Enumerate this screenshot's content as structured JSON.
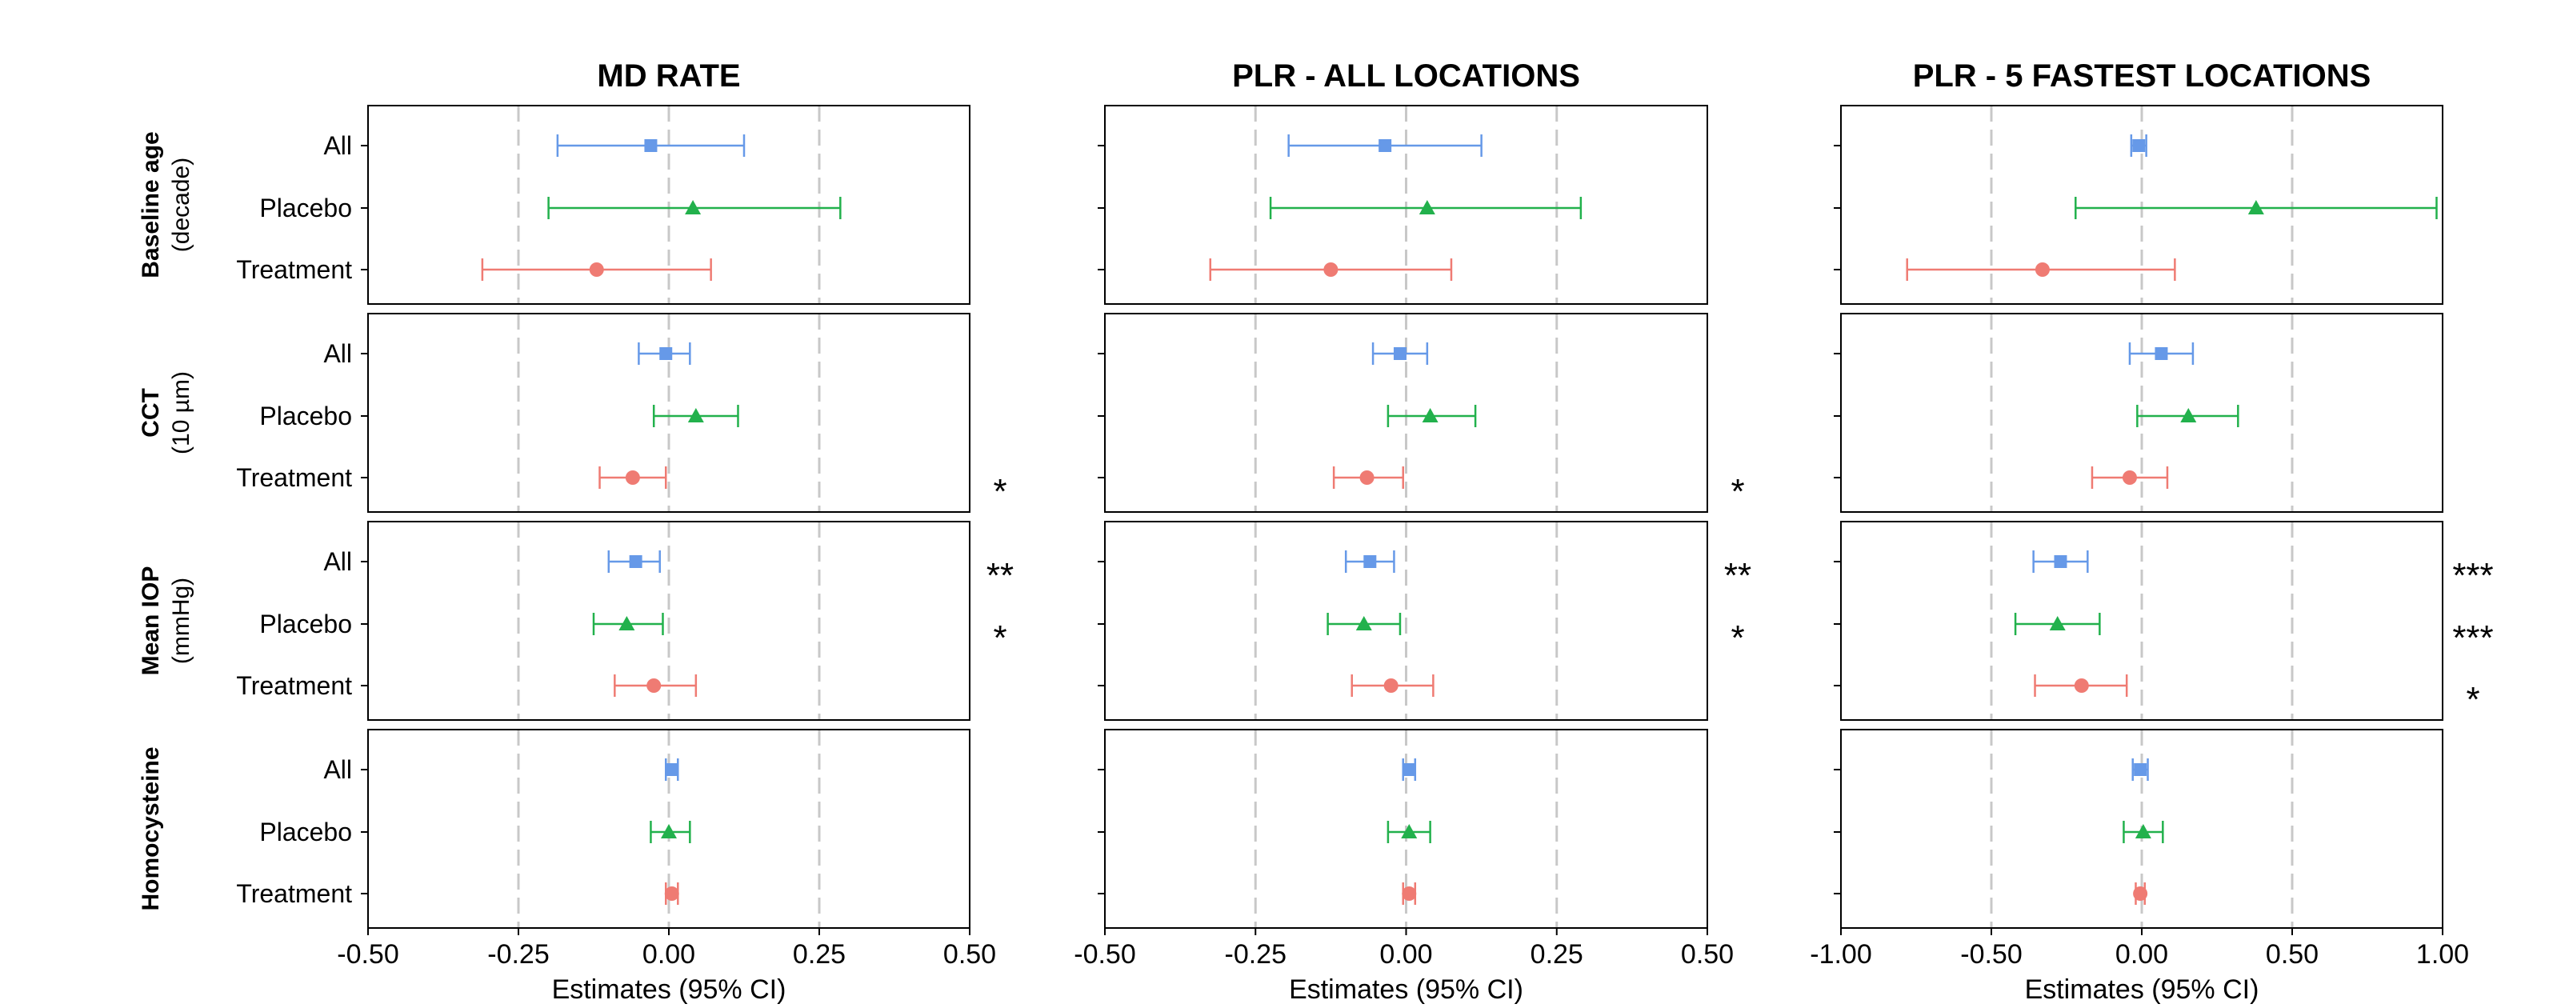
{
  "chart_data": {
    "type": "forest",
    "colors": {
      "All": "#6699e8",
      "Placebo": "#22b14c",
      "Treatment": "#ef7b73"
    },
    "markers": {
      "All": "square",
      "Placebo": "triangle",
      "Treatment": "circle"
    },
    "subgroups": [
      "All",
      "Placebo",
      "Treatment"
    ],
    "rows": [
      {
        "name": "Baseline age",
        "unit": "(decade)"
      },
      {
        "name": "CCT",
        "unit": "(10 µm)"
      },
      {
        "name": "Mean IOP",
        "unit": "(mmHg)"
      },
      {
        "name": "Homocysteine",
        "unit": ""
      }
    ],
    "panels": [
      {
        "title": "MD RATE",
        "xlabel": "Estimates (95% CI)",
        "xlim": [
          -0.5,
          0.5
        ],
        "xticks": [
          -0.5,
          -0.25,
          0,
          0.25,
          0.5
        ],
        "xtick_labels": [
          "-0.50",
          "-0.25",
          "0.00",
          "0.25",
          "0.50"
        ],
        "reference_lines": [
          -0.25,
          0,
          0.25
        ],
        "estimates": [
          [
            {
              "est": -0.03,
              "lo": -0.185,
              "hi": 0.125
            },
            {
              "est": 0.04,
              "lo": -0.2,
              "hi": 0.285
            },
            {
              "est": -0.12,
              "lo": -0.31,
              "hi": 0.07
            }
          ],
          [
            {
              "est": -0.005,
              "lo": -0.05,
              "hi": 0.035
            },
            {
              "est": 0.045,
              "lo": -0.025,
              "hi": 0.115
            },
            {
              "est": -0.06,
              "lo": -0.115,
              "hi": -0.005
            }
          ],
          [
            {
              "est": -0.055,
              "lo": -0.1,
              "hi": -0.015
            },
            {
              "est": -0.07,
              "lo": -0.125,
              "hi": -0.01
            },
            {
              "est": -0.025,
              "lo": -0.09,
              "hi": 0.045
            }
          ],
          [
            {
              "est": 0.005,
              "lo": -0.005,
              "hi": 0.015
            },
            {
              "est": 0.0,
              "lo": -0.03,
              "hi": 0.035
            },
            {
              "est": 0.005,
              "lo": -0.005,
              "hi": 0.015
            }
          ]
        ],
        "significance": [
          [
            "",
            "",
            ""
          ],
          [
            "",
            "",
            "*"
          ],
          [
            "**",
            "*",
            ""
          ],
          [
            "",
            "",
            ""
          ]
        ]
      },
      {
        "title": "PLR - ALL LOCATIONS",
        "xlabel": "Estimates (95% CI)",
        "xlim": [
          -0.5,
          0.5
        ],
        "xticks": [
          -0.5,
          -0.25,
          0,
          0.25,
          0.5
        ],
        "xtick_labels": [
          "-0.50",
          "-0.25",
          "0.00",
          "0.25",
          "0.50"
        ],
        "reference_lines": [
          -0.25,
          0,
          0.25
        ],
        "estimates": [
          [
            {
              "est": -0.035,
              "lo": -0.195,
              "hi": 0.125
            },
            {
              "est": 0.035,
              "lo": -0.225,
              "hi": 0.29
            },
            {
              "est": -0.125,
              "lo": -0.325,
              "hi": 0.075
            }
          ],
          [
            {
              "est": -0.01,
              "lo": -0.055,
              "hi": 0.035
            },
            {
              "est": 0.04,
              "lo": -0.03,
              "hi": 0.115
            },
            {
              "est": -0.065,
              "lo": -0.12,
              "hi": -0.005
            }
          ],
          [
            {
              "est": -0.06,
              "lo": -0.1,
              "hi": -0.02
            },
            {
              "est": -0.07,
              "lo": -0.13,
              "hi": -0.01
            },
            {
              "est": -0.025,
              "lo": -0.09,
              "hi": 0.045
            }
          ],
          [
            {
              "est": 0.005,
              "lo": -0.005,
              "hi": 0.015
            },
            {
              "est": 0.005,
              "lo": -0.03,
              "hi": 0.04
            },
            {
              "est": 0.005,
              "lo": -0.005,
              "hi": 0.015
            }
          ]
        ],
        "significance": [
          [
            "",
            "",
            ""
          ],
          [
            "",
            "",
            "*"
          ],
          [
            "**",
            "*",
            ""
          ],
          [
            "",
            "",
            ""
          ]
        ]
      },
      {
        "title": "PLR - 5 FASTEST LOCATIONS",
        "xlabel": "Estimates (95% CI)",
        "xlim": [
          -1.0,
          1.0
        ],
        "xticks": [
          -1.0,
          -0.5,
          0,
          0.5,
          1.0
        ],
        "xtick_labels": [
          "-1.00",
          "-0.50",
          "0.00",
          "0.50",
          "1.00"
        ],
        "reference_lines": [
          -0.5,
          0,
          0.5
        ],
        "estimates": [
          [
            {
              "est": -0.01,
              "lo": -0.035,
              "hi": 0.015
            },
            {
              "est": 0.38,
              "lo": -0.22,
              "hi": 0.98
            },
            {
              "est": -0.33,
              "lo": -0.78,
              "hi": 0.11
            }
          ],
          [
            {
              "est": 0.065,
              "lo": -0.04,
              "hi": 0.17
            },
            {
              "est": 0.155,
              "lo": -0.015,
              "hi": 0.32
            },
            {
              "est": -0.04,
              "lo": -0.165,
              "hi": 0.085
            }
          ],
          [
            {
              "est": -0.27,
              "lo": -0.36,
              "hi": -0.18
            },
            {
              "est": -0.28,
              "lo": -0.42,
              "hi": -0.14
            },
            {
              "est": -0.2,
              "lo": -0.355,
              "hi": -0.05
            }
          ],
          [
            {
              "est": -0.005,
              "lo": -0.03,
              "hi": 0.02
            },
            {
              "est": 0.005,
              "lo": -0.06,
              "hi": 0.07
            },
            {
              "est": -0.005,
              "lo": -0.02,
              "hi": 0.01
            }
          ]
        ],
        "significance": [
          [
            "",
            "",
            ""
          ],
          [
            "",
            "",
            ""
          ],
          [
            "***",
            "***",
            "*"
          ],
          [
            "",
            "",
            ""
          ]
        ]
      }
    ]
  }
}
